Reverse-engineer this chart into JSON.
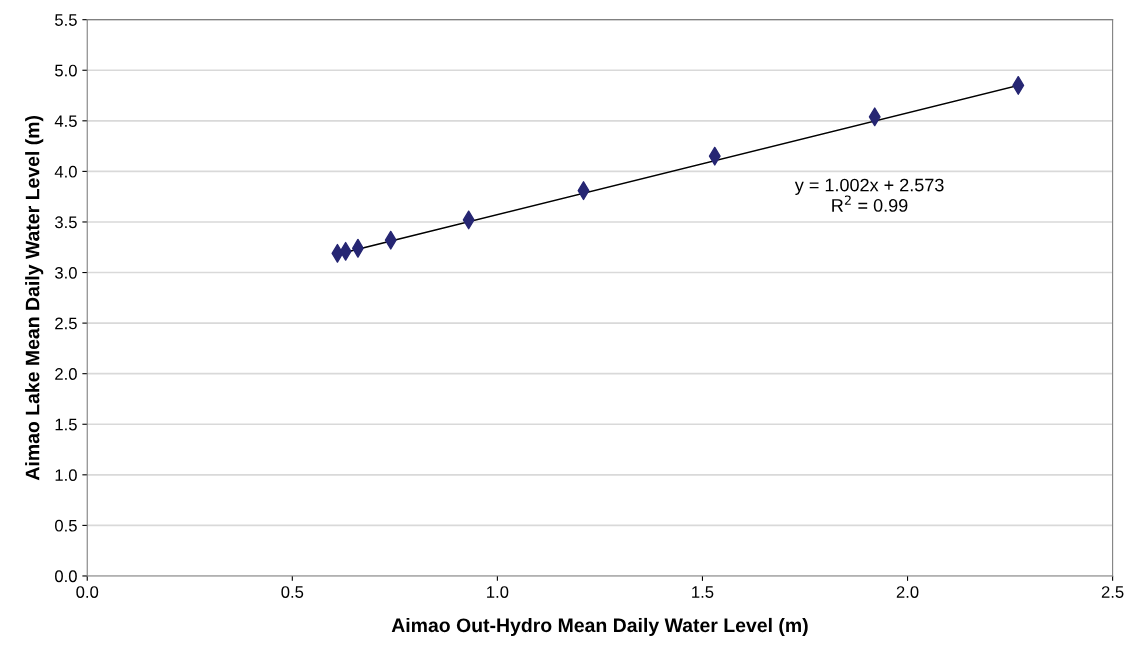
{
  "chart_data": {
    "type": "scatter",
    "xlabel": "Aimao Out-Hydro Mean Daily Water Level (m)",
    "ylabel": "Aimao Lake Mean Daily Water Level (m)",
    "series": [
      {
        "color": "#262673",
        "marker": "diamond",
        "x": [
          0.61,
          0.63,
          0.66,
          0.74,
          0.93,
          1.21,
          1.53,
          1.92,
          2.27
        ],
        "values": [
          3.19,
          3.21,
          3.24,
          3.32,
          3.52,
          3.81,
          4.15,
          4.54,
          4.85
        ]
      },
      {
        "type": "line",
        "color": "#000000",
        "marker": "none",
        "line_style": "solid",
        "x": [
          0.61,
          2.27
        ],
        "values": [
          3.18,
          4.85
        ]
      }
    ],
    "annotations": [
      "y = 1.002x + 2.573",
      "R$^{2}$ = 0.99"
    ],
    "xlim": [
      0,
      2.5
    ],
    "xticks": [
      {
        "value": 0,
        "label": "0.0"
      },
      {
        "value": 0.5,
        "label": "0.5"
      },
      {
        "value": 1,
        "label": "1.0"
      },
      {
        "value": 1.5,
        "label": "1.5"
      },
      {
        "value": 2,
        "label": "2.0"
      },
      {
        "value": 2.5,
        "label": "2.5"
      }
    ],
    "ylim": [
      0,
      5.5
    ],
    "yticks": [
      {
        "value": 0,
        "label": "0.0"
      },
      {
        "value": 0.5,
        "label": "0.5"
      },
      {
        "value": 1,
        "label": "1.0"
      },
      {
        "value": 1.5,
        "label": "1.5"
      },
      {
        "value": 2,
        "label": "2.0"
      },
      {
        "value": 2.5,
        "label": "2.5"
      },
      {
        "value": 3,
        "label": "3.0"
      },
      {
        "value": 3.5,
        "label": "3.5"
      },
      {
        "value": 4,
        "label": "4.0"
      },
      {
        "value": 4.5,
        "label": "4.5"
      },
      {
        "value": 5,
        "label": "5.0"
      },
      {
        "value": 5.5,
        "label": "5.5"
      }
    ],
    "grid": "y",
    "legend": false
  }
}
